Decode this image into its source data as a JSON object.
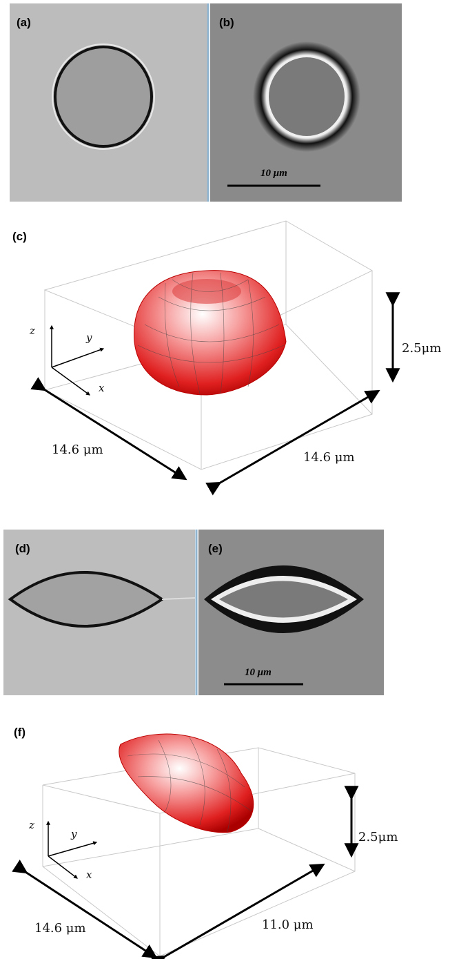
{
  "panels": {
    "a": {
      "label": "(a)"
    },
    "b": {
      "label": "(b)",
      "scale_bar": "10 μm"
    },
    "c": {
      "label": "(c)",
      "axes": [
        "z",
        "y",
        "x"
      ],
      "height": "2.5μm",
      "depth": "14.6 μm",
      "width": "14.6 μm"
    },
    "d": {
      "label": "(d)"
    },
    "e": {
      "label": "(e)",
      "scale_bar": "10 μm"
    },
    "f": {
      "label": "(f)",
      "axes": [
        "z",
        "y",
        "x"
      ],
      "height": "2.5μm",
      "depth": "14.6 μm",
      "width": "11.0 μm"
    }
  }
}
